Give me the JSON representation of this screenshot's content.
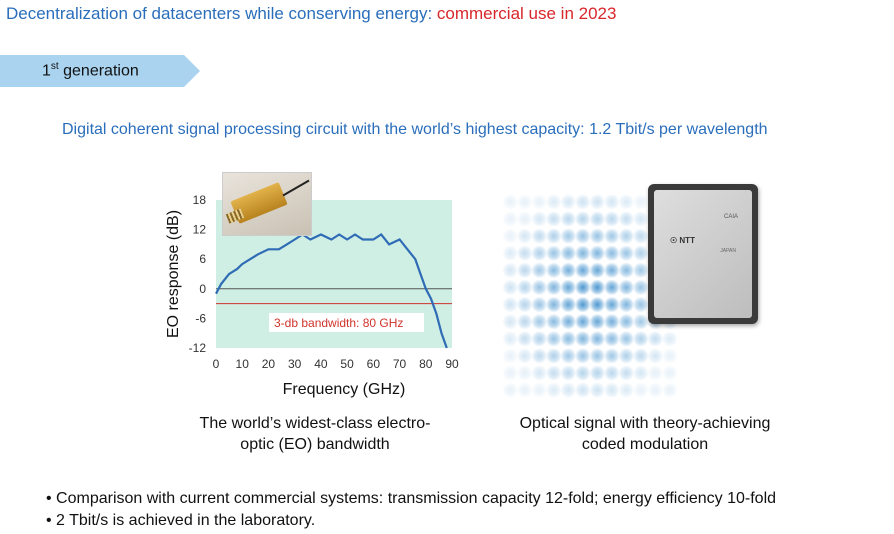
{
  "heading": {
    "main": "Decentralization of datacenters while conserving energy: ",
    "highlight": "commercial use in 2023"
  },
  "generation_tab": {
    "prefix": "1",
    "superscript": "st",
    "suffix": " generation"
  },
  "subheading": "Digital coherent signal processing circuit with the world’s highest capacity: 1.2 Tbit/s per wavelength",
  "chart_data": {
    "type": "line",
    "xlabel": "Frequency (GHz)",
    "ylabel": "EO response (dB)",
    "xlim": [
      0,
      90
    ],
    "ylim": [
      -12,
      18
    ],
    "x_ticks": [
      "0",
      "10",
      "20",
      "30",
      "40",
      "50",
      "60",
      "70",
      "80",
      "90"
    ],
    "y_ticks": [
      "18",
      "12",
      "6",
      "0",
      "-6",
      "-12"
    ],
    "series": [
      {
        "x": [
          0,
          2,
          5,
          8,
          10,
          13,
          16,
          20,
          24,
          27,
          30,
          33,
          36,
          40,
          44,
          47,
          50,
          53,
          56,
          60,
          63,
          66,
          70,
          73,
          76,
          78,
          80,
          82,
          84,
          86,
          88
        ],
        "y": [
          -1,
          1,
          3,
          4,
          5,
          6,
          7,
          8,
          8,
          9,
          10,
          11,
          10,
          11,
          10,
          11,
          10,
          11,
          10,
          10,
          11,
          9,
          10,
          8,
          6,
          3,
          0,
          -2,
          -5,
          -9,
          -12
        ]
      }
    ],
    "reference_line_db": -3,
    "annotation": "3-db bandwidth: 80 GHz",
    "colors": {
      "line": "#2f6cb5",
      "plot_bg": "#cfeee4",
      "reference": "#d0342c",
      "zero_line": "#555555"
    }
  },
  "captions": {
    "eo_bandwidth": [
      "The world’s widest-class electro-",
      "optic (EO) bandwidth"
    ],
    "optical_signal": [
      "Optical signal with theory-achieving",
      "coded modulation"
    ]
  },
  "chip": {
    "logo": "NTT",
    "model": "CAIA",
    "country": "JAPAN"
  },
  "bullets": [
    "• Comparison with current commercial systems: transmission capacity 12-fold; energy efficiency 10-fold",
    "• 2 Tbit/s is achieved in the laboratory."
  ],
  "colors": {
    "heading": "#2a6ebb",
    "highlight": "#d9262b",
    "tab": "#a9d3ef",
    "constellation": "#2f86c8"
  }
}
